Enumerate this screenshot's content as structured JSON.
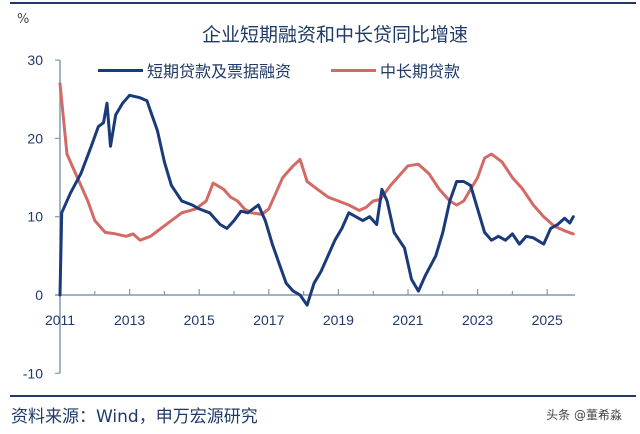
{
  "header": {
    "unit": "%",
    "title": "企业短期融资和中长贷同比增速"
  },
  "legend": [
    {
      "label": "短期贷款及票据融资",
      "color": "#1a3a7a"
    },
    {
      "label": "中长期贷款",
      "color": "#d46a66"
    }
  ],
  "footer": {
    "source": "资料来源：Wind，申万宏源研究",
    "watermark": "头条 @董希淼"
  },
  "colors": {
    "rule": "#1f3a68",
    "axis": "#7a9bb5",
    "text": "#1f3a68"
  },
  "chart_data": {
    "type": "line",
    "title": "企业短期融资和中长贷同比增速",
    "xlabel": "",
    "ylabel": "%",
    "ylim": [
      -10,
      30
    ],
    "xlim": [
      2011,
      2025.8
    ],
    "yticks": [
      30,
      20,
      10,
      0,
      -10
    ],
    "xticks": [
      "2011",
      "2013",
      "2015",
      "2017",
      "2019",
      "2021",
      "2023",
      "2025"
    ],
    "grid": false,
    "legend_position": "top",
    "series": [
      {
        "name": "短期贷款及票据融资",
        "color": "#1a3a7a",
        "x": [
          2011.0,
          2011.05,
          2011.3,
          2011.6,
          2011.9,
          2012.1,
          2012.25,
          2012.35,
          2012.45,
          2012.6,
          2012.8,
          2013.0,
          2013.3,
          2013.5,
          2013.6,
          2013.8,
          2014.0,
          2014.2,
          2014.5,
          2014.8,
          2015.0,
          2015.3,
          2015.6,
          2015.8,
          2016.0,
          2016.2,
          2016.4,
          2016.7,
          2016.9,
          2017.1,
          2017.3,
          2017.5,
          2017.7,
          2017.9,
          2018.1,
          2018.3,
          2018.5,
          2018.7,
          2018.9,
          2019.1,
          2019.3,
          2019.5,
          2019.7,
          2019.9,
          2020.1,
          2020.25,
          2020.4,
          2020.6,
          2020.9,
          2021.1,
          2021.3,
          2021.5,
          2021.8,
          2022.0,
          2022.2,
          2022.4,
          2022.6,
          2022.8,
          2023.0,
          2023.2,
          2023.4,
          2023.6,
          2023.8,
          2024.0,
          2024.2,
          2024.4,
          2024.6,
          2024.9,
          2025.1,
          2025.3,
          2025.5,
          2025.65,
          2025.75
        ],
        "values": [
          0,
          10.5,
          13,
          15.5,
          19,
          21.5,
          22,
          24.5,
          19,
          23,
          24.5,
          25.5,
          25.2,
          24.8,
          23.5,
          21,
          17,
          14,
          12,
          11.5,
          11,
          10.5,
          9,
          8.5,
          9.5,
          10.7,
          10.5,
          11.5,
          9.5,
          6.5,
          4,
          1.5,
          0.5,
          0,
          -1.3,
          1.5,
          3,
          5,
          7,
          8.5,
          10.5,
          10,
          9.5,
          10,
          9,
          13.5,
          12,
          8,
          6,
          2,
          0.5,
          2.5,
          5,
          8,
          12,
          14.5,
          14.5,
          14,
          11,
          8,
          7,
          7.5,
          7,
          7.8,
          6.5,
          7.5,
          7.3,
          6.5,
          8.5,
          9,
          9.8,
          9.2,
          10
        ]
      },
      {
        "name": "中长期贷款",
        "color": "#d46a66",
        "x": [
          2011.0,
          2011.2,
          2011.5,
          2011.8,
          2012.0,
          2012.3,
          2012.6,
          2012.9,
          2013.1,
          2013.3,
          2013.6,
          2013.9,
          2014.2,
          2014.5,
          2014.9,
          2015.2,
          2015.4,
          2015.7,
          2015.9,
          2016.1,
          2016.3,
          2016.5,
          2016.8,
          2017.0,
          2017.2,
          2017.4,
          2017.7,
          2017.9,
          2018.1,
          2018.4,
          2018.7,
          2019.0,
          2019.3,
          2019.6,
          2019.8,
          2020.0,
          2020.2,
          2020.5,
          2020.8,
          2021.0,
          2021.3,
          2021.6,
          2021.9,
          2022.2,
          2022.4,
          2022.6,
          2022.8,
          2023.0,
          2023.2,
          2023.4,
          2023.7,
          2024.0,
          2024.3,
          2024.6,
          2024.9,
          2025.2,
          2025.5,
          2025.75
        ],
        "values": [
          27,
          18,
          15,
          12,
          9.5,
          8,
          7.8,
          7.5,
          7.8,
          7,
          7.5,
          8.5,
          9.5,
          10.5,
          11,
          12,
          14.3,
          13.5,
          12.5,
          12,
          11,
          10.5,
          10.3,
          11,
          13,
          15,
          16.5,
          17.3,
          14.5,
          13.5,
          12.5,
          12,
          11.5,
          10.8,
          11.2,
          12,
          12.2,
          14,
          15.5,
          16.5,
          16.7,
          15.5,
          13.5,
          12,
          11.5,
          12,
          13.5,
          15,
          17.5,
          18,
          17,
          15,
          13.5,
          11.5,
          10,
          8.8,
          8.2,
          7.8
        ]
      }
    ]
  }
}
